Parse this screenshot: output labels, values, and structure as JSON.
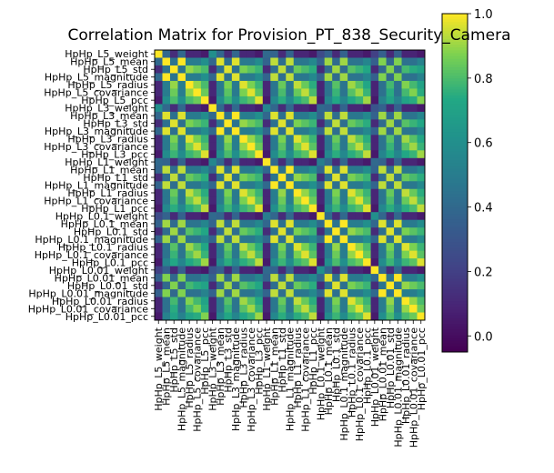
{
  "chart_data": {
    "type": "heatmap",
    "title": "Correlation Matrix for Provision_PT_838_Security_Camera",
    "labels": [
      "HpHp_L5_weight",
      "HpHp_L5_mean",
      "HpHp_L5_std",
      "HpHp_L5_magnitude",
      "HpHp_L5_radius",
      "HpHp_L5_covariance",
      "HpHp_L5_pcc",
      "HpHp_L3_weight",
      "HpHp_L3_mean",
      "HpHp_L3_std",
      "HpHp_L3_magnitude",
      "HpHp_L3_radius",
      "HpHp_L3_covariance",
      "HpHp_L3_pcc",
      "HpHp_L1_weight",
      "HpHp_L1_mean",
      "HpHp_L1_std",
      "HpHp_L1_magnitude",
      "HpHp_L1_radius",
      "HpHp_L1_covariance",
      "HpHp_L1_pcc",
      "HpHp_L0.1_weight",
      "HpHp_L0.1_mean",
      "HpHp_L0.1_std",
      "HpHp_L0.1_magnitude",
      "HpHp_L0.1_radius",
      "HpHp_L0.1_covariance",
      "HpHp_L0.1_pcc",
      "HpHp_L0.01_weight",
      "HpHp_L0.01_mean",
      "HpHp_L0.01_std",
      "HpHp_L0.01_magnitude",
      "HpHp_L0.01_radius",
      "HpHp_L0.01_covariance",
      "HpHp_L0.01_pcc"
    ],
    "feature_types": [
      "weight",
      "mean",
      "std",
      "magnitude",
      "radius",
      "covariance",
      "pcc"
    ],
    "block_correlations": [
      [
        1.0,
        0.4,
        0.12,
        0.4,
        0.1,
        0.1,
        0.05
      ],
      [
        0.4,
        1.0,
        0.45,
        1.0,
        0.5,
        0.5,
        0.6
      ],
      [
        0.12,
        0.45,
        1.0,
        0.45,
        0.9,
        0.85,
        0.8
      ],
      [
        0.4,
        1.0,
        0.45,
        1.0,
        0.5,
        0.5,
        0.6
      ],
      [
        0.1,
        0.5,
        0.9,
        0.5,
        1.0,
        0.9,
        0.8
      ],
      [
        0.1,
        0.5,
        0.85,
        0.5,
        0.9,
        1.0,
        0.85
      ],
      [
        0.05,
        0.6,
        0.8,
        0.6,
        0.8,
        0.85,
        1.0
      ]
    ],
    "weight_cross_scale": [
      [
        1.0,
        0.6,
        0.4,
        0.25,
        0.2
      ],
      [
        0.6,
        1.0,
        0.55,
        0.4,
        0.3
      ],
      [
        0.4,
        0.55,
        1.0,
        0.5,
        0.4
      ],
      [
        0.25,
        0.4,
        0.5,
        1.0,
        0.6
      ],
      [
        0.2,
        0.3,
        0.4,
        0.6,
        1.0
      ]
    ],
    "colormap": "viridis",
    "vmin": -0.05,
    "vmax": 1.0,
    "colorbar_ticks": [
      "0.0",
      "0.2",
      "0.4",
      "0.6",
      "0.8",
      "1.0"
    ],
    "grid": false
  }
}
